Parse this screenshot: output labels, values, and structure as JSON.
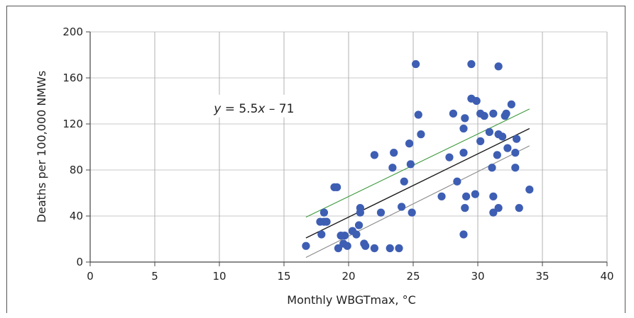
{
  "chart_data": {
    "type": "scatter",
    "xlabel": "Monthly WBGTmax, °C",
    "ylabel": "Deaths per 100,000 NMWs",
    "xlim": [
      0,
      40
    ],
    "ylim": [
      0,
      200
    ],
    "xticks": [
      0,
      5,
      10,
      15,
      20,
      25,
      30,
      35,
      40
    ],
    "yticks": [
      0,
      40,
      80,
      120,
      160,
      200
    ],
    "x_grid": true,
    "y_grid": true,
    "marker_color": "#3d5eb3",
    "annotation": {
      "italic": "y",
      "text": " = 5.5",
      "italic2": "x",
      "text2": " – 71",
      "x": 11.2,
      "y": 130
    },
    "points": [
      [
        16.7,
        14
      ],
      [
        17.8,
        35
      ],
      [
        17.9,
        24
      ],
      [
        18.1,
        43
      ],
      [
        18.1,
        35
      ],
      [
        18.3,
        35
      ],
      [
        18.9,
        65
      ],
      [
        19.1,
        65
      ],
      [
        19.2,
        12
      ],
      [
        19.4,
        23
      ],
      [
        19.6,
        16
      ],
      [
        19.7,
        23
      ],
      [
        19.9,
        14
      ],
      [
        20.3,
        27
      ],
      [
        20.6,
        24
      ],
      [
        20.8,
        32
      ],
      [
        20.9,
        47
      ],
      [
        20.9,
        43
      ],
      [
        21.2,
        16
      ],
      [
        21.3,
        14
      ],
      [
        22.0,
        93
      ],
      [
        22.0,
        12
      ],
      [
        22.5,
        43
      ],
      [
        23.2,
        12
      ],
      [
        23.4,
        82
      ],
      [
        23.5,
        95
      ],
      [
        23.9,
        12
      ],
      [
        24.1,
        48
      ],
      [
        24.3,
        70
      ],
      [
        24.7,
        103
      ],
      [
        24.8,
        85
      ],
      [
        24.9,
        43
      ],
      [
        25.2,
        172
      ],
      [
        25.4,
        128
      ],
      [
        25.6,
        111
      ],
      [
        27.2,
        57
      ],
      [
        27.8,
        91
      ],
      [
        28.1,
        129
      ],
      [
        28.4,
        70
      ],
      [
        28.9,
        116
      ],
      [
        28.9,
        95
      ],
      [
        29.0,
        125
      ],
      [
        28.9,
        24
      ],
      [
        29.0,
        47
      ],
      [
        29.1,
        57
      ],
      [
        29.5,
        172
      ],
      [
        29.5,
        142
      ],
      [
        29.8,
        59
      ],
      [
        29.9,
        140
      ],
      [
        30.2,
        105
      ],
      [
        30.2,
        129
      ],
      [
        30.5,
        127
      ],
      [
        30.9,
        113
      ],
      [
        31.1,
        82
      ],
      [
        31.2,
        129
      ],
      [
        31.2,
        57
      ],
      [
        31.2,
        43
      ],
      [
        31.5,
        93
      ],
      [
        31.6,
        170
      ],
      [
        31.6,
        111
      ],
      [
        31.6,
        47
      ],
      [
        31.9,
        109
      ],
      [
        32.1,
        127
      ],
      [
        32.2,
        129
      ],
      [
        32.3,
        99
      ],
      [
        32.6,
        137
      ],
      [
        32.9,
        95
      ],
      [
        32.9,
        82
      ],
      [
        33.0,
        107
      ],
      [
        33.2,
        47
      ],
      [
        34.0,
        63
      ]
    ],
    "lines": [
      {
        "role": "fit",
        "color": "#1a1a1a",
        "x": [
          16.7,
          34.0
        ],
        "y": [
          20.9,
          116.0
        ]
      },
      {
        "role": "upper",
        "color": "#3f9a3f",
        "x": [
          16.7,
          34.0
        ],
        "y": [
          39,
          133
        ]
      },
      {
        "role": "lower",
        "color": "#8a8a8a",
        "x": [
          16.7,
          34.0
        ],
        "y": [
          4,
          101
        ]
      }
    ]
  }
}
